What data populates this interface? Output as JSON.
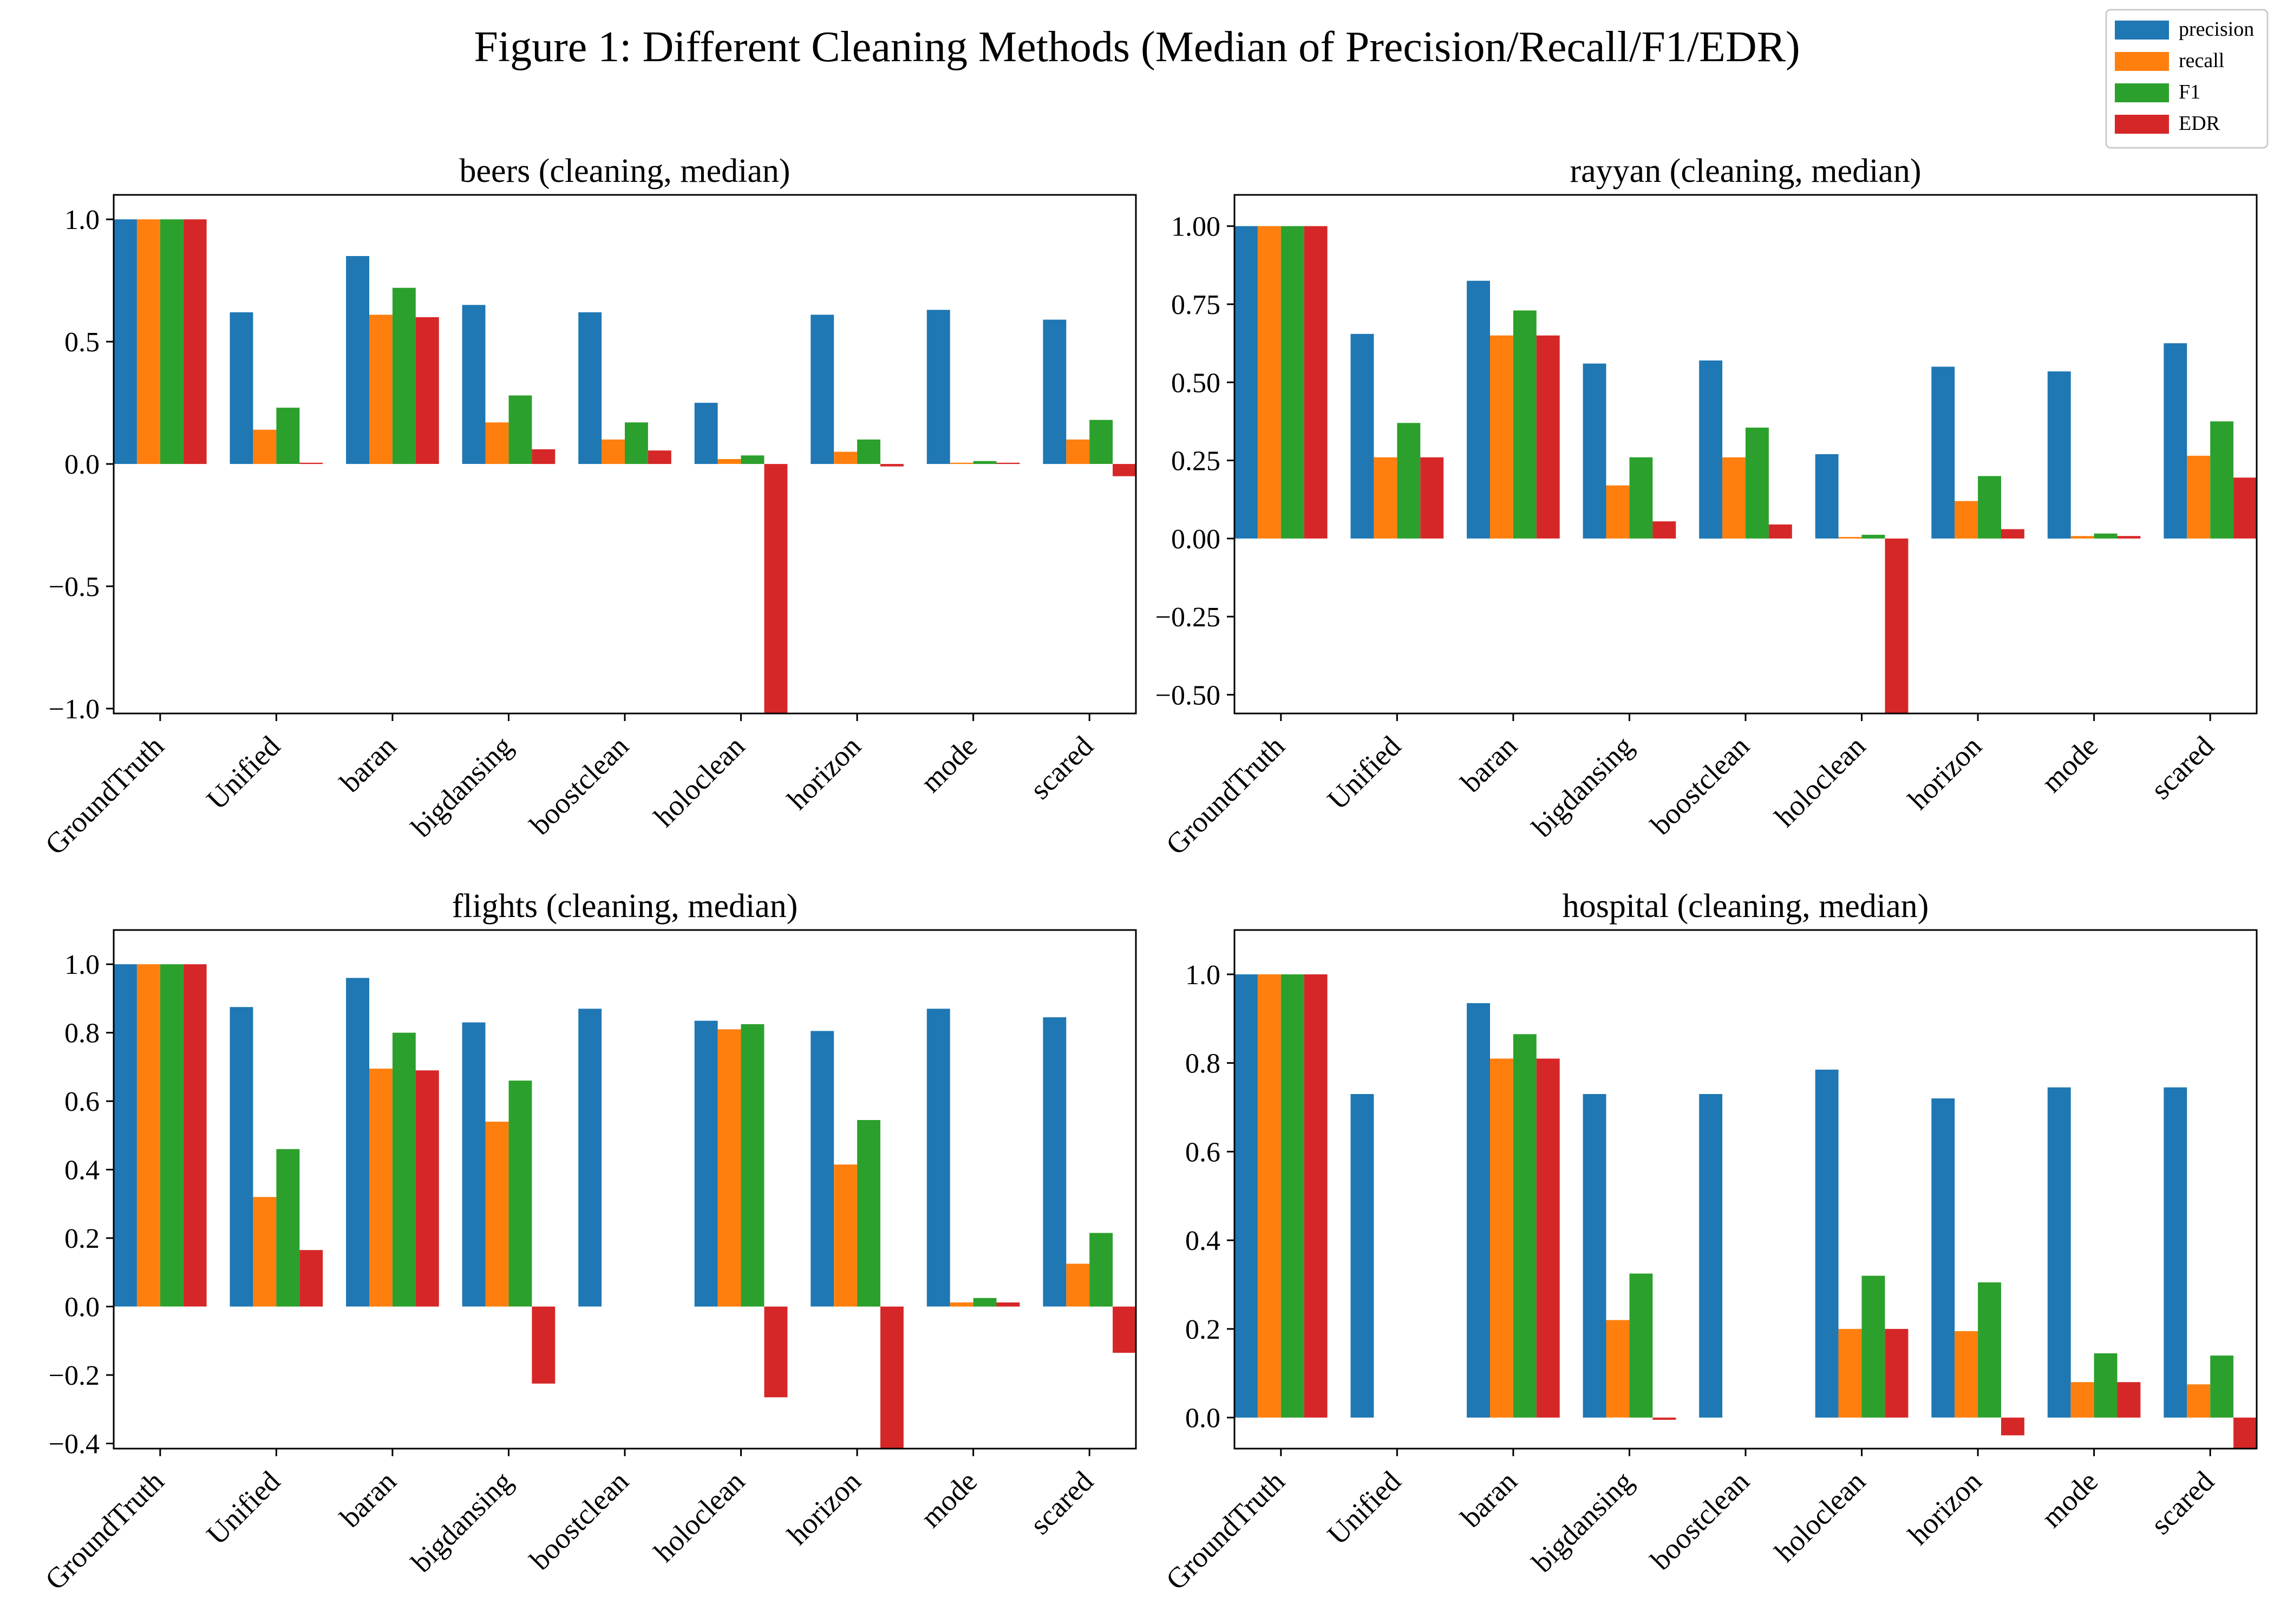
{
  "figure": {
    "title": "Figure 1: Different Cleaning Methods (Median of Precision/Recall/F1/EDR)"
  },
  "legend": {
    "entries": [
      {
        "label": "precision",
        "color": "#1f77b4"
      },
      {
        "label": "recall",
        "color": "#ff7f0e"
      },
      {
        "label": "F1",
        "color": "#2ca02c"
      },
      {
        "label": "EDR",
        "color": "#d62728"
      }
    ]
  },
  "chart_data": [
    {
      "type": "bar",
      "title": "beers (cleaning, median)",
      "categories": [
        "GroundTruth",
        "Unified",
        "baran",
        "bigdansing",
        "boostclean",
        "holoclean",
        "horizon",
        "mode",
        "scared"
      ],
      "ylim": [
        -1.02,
        1.1
      ],
      "yticks": [
        -1.0,
        -0.5,
        0.0,
        0.5,
        1.0
      ],
      "ytick_labels": [
        "−1.0",
        "−0.5",
        "0.0",
        "0.5",
        "1.0"
      ],
      "series": [
        {
          "name": "precision",
          "values": [
            1.0,
            0.62,
            0.85,
            0.65,
            0.62,
            0.25,
            0.61,
            0.63,
            0.59
          ]
        },
        {
          "name": "recall",
          "values": [
            1.0,
            0.14,
            0.61,
            0.17,
            0.1,
            0.02,
            0.05,
            0.005,
            0.1
          ]
        },
        {
          "name": "F1",
          "values": [
            1.0,
            0.23,
            0.72,
            0.28,
            0.17,
            0.035,
            0.1,
            0.012,
            0.18
          ]
        },
        {
          "name": "EDR",
          "values": [
            1.0,
            0.005,
            0.6,
            0.06,
            0.055,
            -1.02,
            -0.01,
            0.005,
            -0.05
          ]
        }
      ]
    },
    {
      "type": "bar",
      "title": "rayyan (cleaning, median)",
      "categories": [
        "GroundTruth",
        "Unified",
        "baran",
        "bigdansing",
        "boostclean",
        "holoclean",
        "horizon",
        "mode",
        "scared"
      ],
      "ylim": [
        -0.56,
        1.1
      ],
      "yticks": [
        -0.5,
        -0.25,
        0.0,
        0.25,
        0.5,
        0.75,
        1.0
      ],
      "ytick_labels": [
        "−0.50",
        "−0.25",
        "0.00",
        "0.25",
        "0.50",
        "0.75",
        "1.00"
      ],
      "series": [
        {
          "name": "precision",
          "values": [
            1.0,
            0.655,
            0.825,
            0.56,
            0.57,
            0.27,
            0.55,
            0.535,
            0.625
          ]
        },
        {
          "name": "recall",
          "values": [
            1.0,
            0.26,
            0.65,
            0.17,
            0.26,
            0.005,
            0.12,
            0.008,
            0.265
          ]
        },
        {
          "name": "F1",
          "values": [
            1.0,
            0.37,
            0.73,
            0.26,
            0.355,
            0.012,
            0.2,
            0.016,
            0.375
          ]
        },
        {
          "name": "EDR",
          "values": [
            1.0,
            0.26,
            0.65,
            0.055,
            0.045,
            -0.56,
            0.03,
            0.008,
            0.195
          ]
        }
      ]
    },
    {
      "type": "bar",
      "title": "flights (cleaning, median)",
      "categories": [
        "GroundTruth",
        "Unified",
        "baran",
        "bigdansing",
        "boostclean",
        "holoclean",
        "horizon",
        "mode",
        "scared"
      ],
      "ylim": [
        -0.415,
        1.1
      ],
      "yticks": [
        -0.4,
        -0.2,
        0.0,
        0.2,
        0.4,
        0.6,
        0.8,
        1.0
      ],
      "ytick_labels": [
        "−0.4",
        "−0.2",
        "0.0",
        "0.2",
        "0.4",
        "0.6",
        "0.8",
        "1.0"
      ],
      "series": [
        {
          "name": "precision",
          "values": [
            1.0,
            0.875,
            0.96,
            0.83,
            0.87,
            0.835,
            0.805,
            0.87,
            0.845
          ]
        },
        {
          "name": "recall",
          "values": [
            1.0,
            0.32,
            0.695,
            0.54,
            0.0,
            0.81,
            0.415,
            0.012,
            0.125
          ]
        },
        {
          "name": "F1",
          "values": [
            1.0,
            0.46,
            0.8,
            0.66,
            0.0,
            0.825,
            0.545,
            0.025,
            0.215
          ]
        },
        {
          "name": "EDR",
          "values": [
            1.0,
            0.165,
            0.69,
            -0.225,
            0.0,
            -0.265,
            -0.415,
            0.012,
            -0.135
          ]
        }
      ]
    },
    {
      "type": "bar",
      "title": "hospital (cleaning, median)",
      "categories": [
        "GroundTruth",
        "Unified",
        "baran",
        "bigdansing",
        "boostclean",
        "holoclean",
        "horizon",
        "mode",
        "scared"
      ],
      "ylim": [
        -0.07,
        1.1
      ],
      "yticks": [
        0.0,
        0.2,
        0.4,
        0.6,
        0.8,
        1.0
      ],
      "ytick_labels": [
        "0.0",
        "0.2",
        "0.4",
        "0.6",
        "0.8",
        "1.0"
      ],
      "series": [
        {
          "name": "precision",
          "values": [
            1.0,
            0.73,
            0.935,
            0.73,
            0.73,
            0.785,
            0.72,
            0.745,
            0.745
          ]
        },
        {
          "name": "recall",
          "values": [
            1.0,
            0.0,
            0.81,
            0.22,
            0.0,
            0.2,
            0.195,
            0.08,
            0.075
          ]
        },
        {
          "name": "F1",
          "values": [
            1.0,
            0.0,
            0.865,
            0.325,
            0.0,
            0.32,
            0.305,
            0.145,
            0.14
          ]
        },
        {
          "name": "EDR",
          "values": [
            1.0,
            0.0,
            0.81,
            -0.005,
            0.0,
            0.2,
            -0.04,
            0.08,
            -0.07
          ]
        }
      ]
    }
  ]
}
